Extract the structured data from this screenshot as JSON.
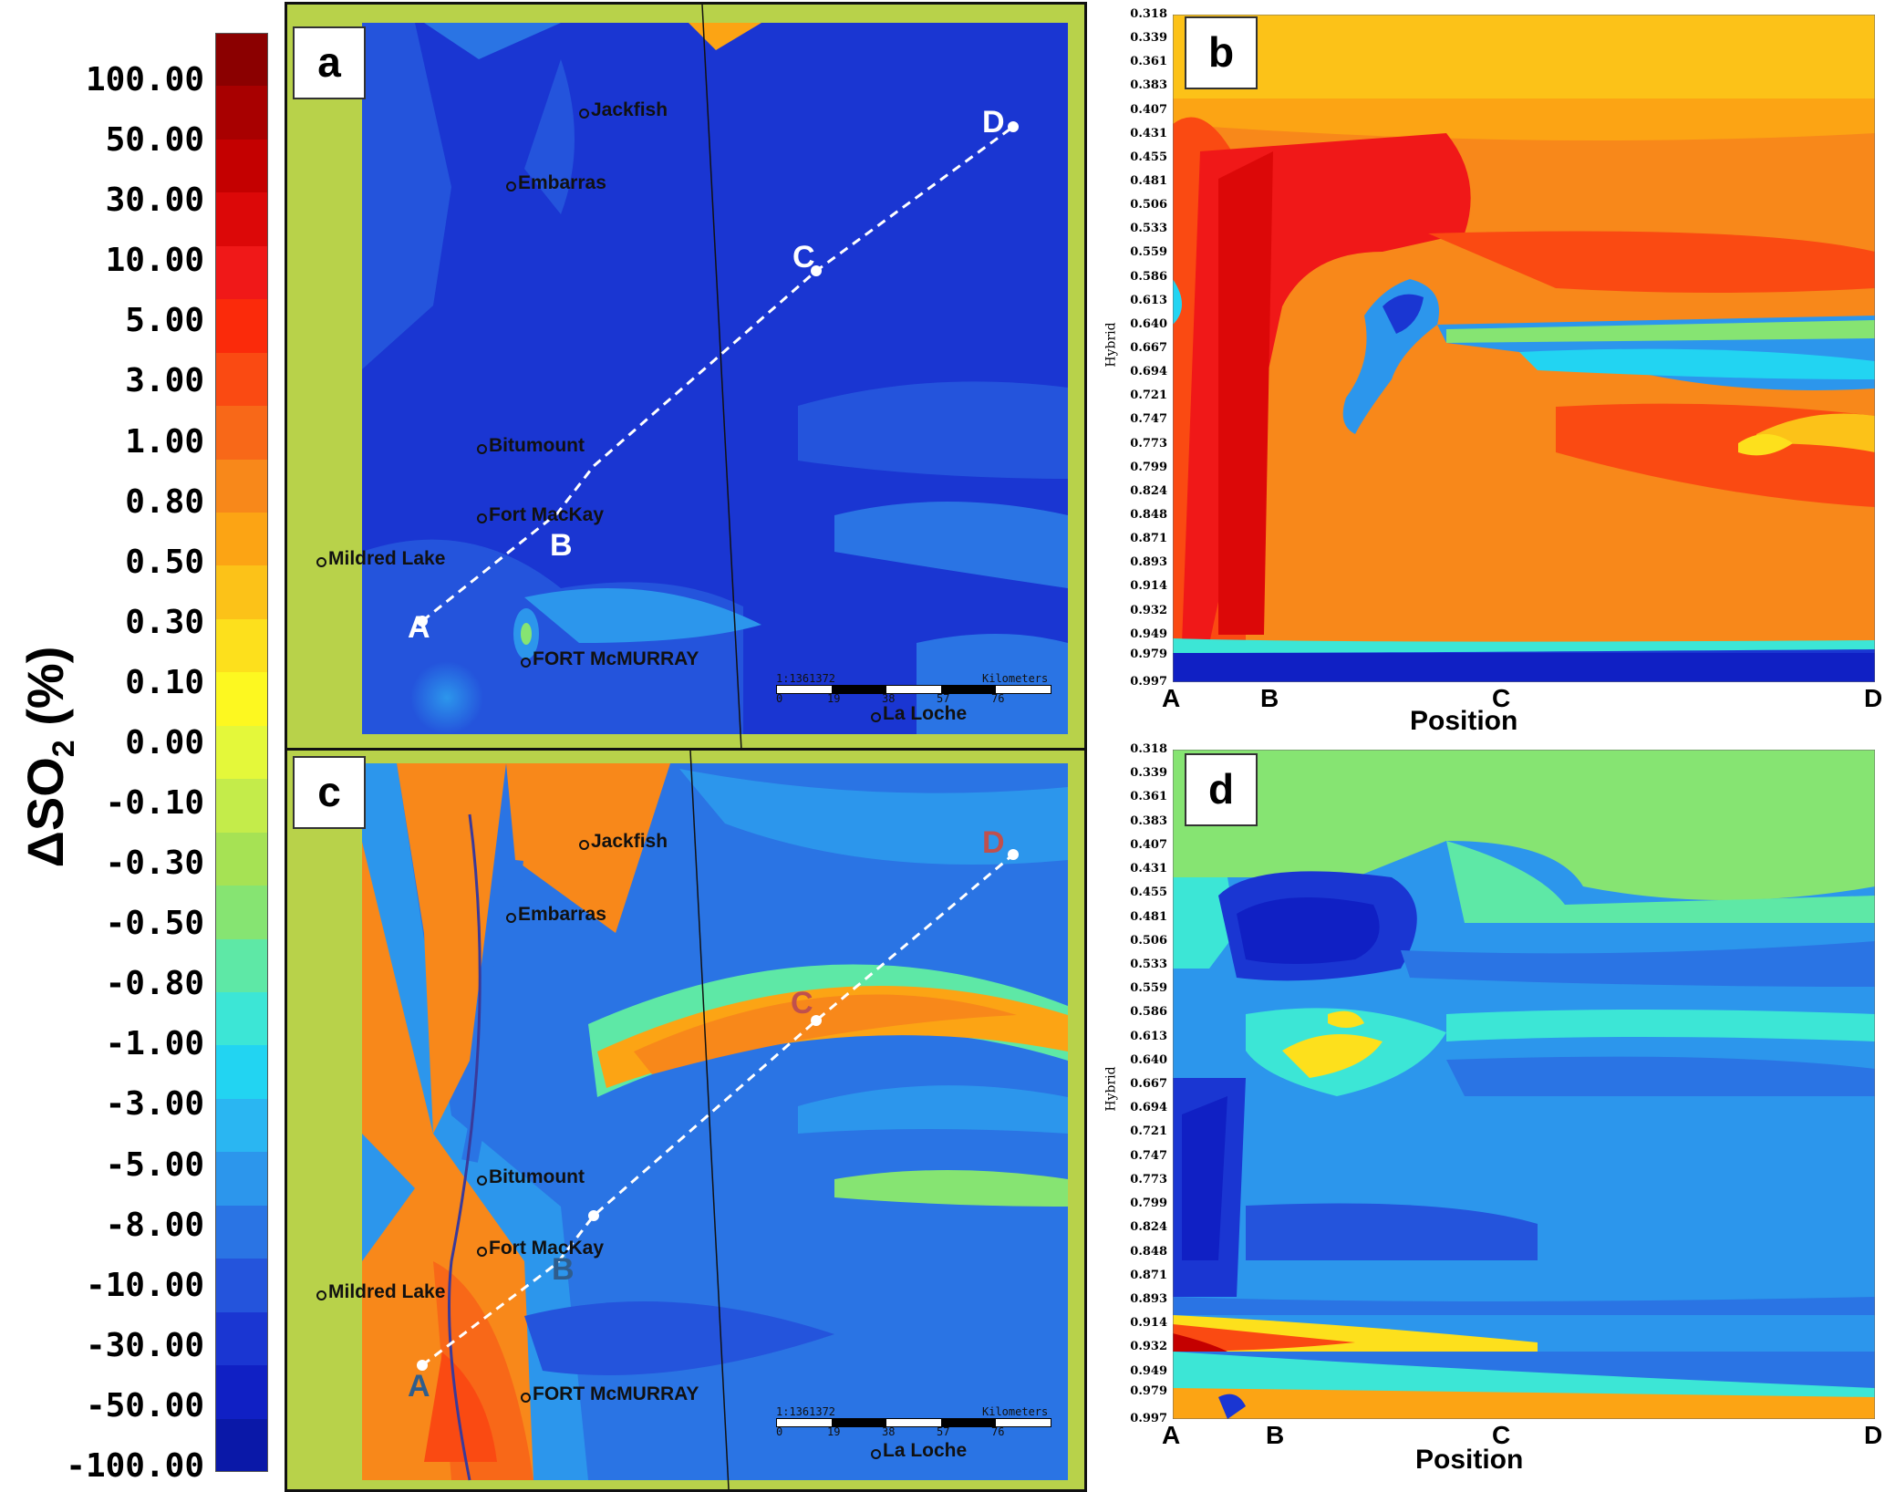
{
  "colorbar": {
    "title_main": "ΔSO",
    "title_sub": "2",
    "title_unit": " (%)",
    "ticks": [
      "100.00",
      "50.00",
      "30.00",
      "10.00",
      "5.00",
      "3.00",
      "1.00",
      "0.80",
      "0.50",
      "0.30",
      "0.10",
      "0.00",
      "-0.10",
      "-0.30",
      "-0.50",
      "-0.80",
      "-1.00",
      "-3.00",
      "-5.00",
      "-8.00",
      "-10.00",
      "-30.00",
      "-50.00",
      "-100.00"
    ],
    "colors": [
      "#8b0000",
      "#a80000",
      "#c40000",
      "#dc0808",
      "#f01818",
      "#fb2a0a",
      "#fa4a12",
      "#f86818",
      "#f8881a",
      "#fca414",
      "#fcc218",
      "#fde01c",
      "#fdf820",
      "#e4f83a",
      "#c4ec4a",
      "#a6e254",
      "#86e472",
      "#5ee8a6",
      "#3ce6d6",
      "#22d4f2",
      "#2ab6f2",
      "#2c96ec",
      "#2a74e4",
      "#2454dc",
      "#1a36d2",
      "#1020c4",
      "#0a18a8"
    ]
  },
  "panels": {
    "a": {
      "label": "a"
    },
    "b": {
      "label": "b"
    },
    "c": {
      "label": "c"
    },
    "d": {
      "label": "d"
    }
  },
  "places": {
    "jackfish": "Jackfish",
    "embarras": "Embarras",
    "bitumount": "Bitumount",
    "fort_mackay": "Fort MacKay",
    "mildred_lake": "Mildred Lake",
    "fort_mcmurray": "FORT McMURRAY",
    "la_loche": "La Loche"
  },
  "transect_points": [
    "A",
    "B",
    "C",
    "D"
  ],
  "scale_bar": {
    "ratio": "1:1361372",
    "ticks": [
      "0",
      "19",
      "38",
      "57",
      "76"
    ],
    "unit": "Kilometers"
  },
  "cross_section": {
    "ylabel": "Hybrid",
    "xlabel": "Position",
    "levels": [
      "0.318",
      "0.339",
      "0.361",
      "0.383",
      "0.407",
      "0.431",
      "0.455",
      "0.481",
      "0.506",
      "0.533",
      "0.559",
      "0.586",
      "0.613",
      "0.640",
      "0.667",
      "0.694",
      "0.721",
      "0.747",
      "0.773",
      "0.799",
      "0.824",
      "0.848",
      "0.871",
      "0.893",
      "0.914",
      "0.932",
      "0.949",
      "0.979",
      "0.997"
    ],
    "positions": [
      "A",
      "B",
      "C",
      "D"
    ]
  },
  "chart_data": [
    {
      "type": "heatmap",
      "panel": "a",
      "description_source": "map of SO2 change with transect A-B-C-D",
      "colorbar_range": [
        -100,
        100
      ],
      "units": "%"
    },
    {
      "type": "heatmap",
      "panel": "b",
      "xlabel": "Position",
      "ylabel": "Hybrid",
      "x_categories": [
        "A",
        "B",
        "C",
        "D"
      ],
      "y_levels": [
        0.318,
        0.339,
        0.361,
        0.383,
        0.407,
        0.431,
        0.455,
        0.481,
        0.506,
        0.533,
        0.559,
        0.586,
        0.613,
        0.64,
        0.667,
        0.694,
        0.721,
        0.747,
        0.773,
        0.799,
        0.824,
        0.848,
        0.871,
        0.893,
        0.914,
        0.932,
        0.949,
        0.979,
        0.997
      ]
    },
    {
      "type": "heatmap",
      "panel": "c",
      "colorbar_range": [
        -100,
        100
      ],
      "units": "%"
    },
    {
      "type": "heatmap",
      "panel": "d",
      "xlabel": "Position",
      "ylabel": "Hybrid",
      "x_categories": [
        "A",
        "B",
        "C",
        "D"
      ],
      "y_levels": [
        0.318,
        0.339,
        0.361,
        0.383,
        0.407,
        0.431,
        0.455,
        0.481,
        0.506,
        0.533,
        0.559,
        0.586,
        0.613,
        0.64,
        0.667,
        0.694,
        0.721,
        0.747,
        0.773,
        0.799,
        0.824,
        0.848,
        0.871,
        0.893,
        0.914,
        0.932,
        0.949,
        0.979,
        0.997
      ]
    }
  ]
}
